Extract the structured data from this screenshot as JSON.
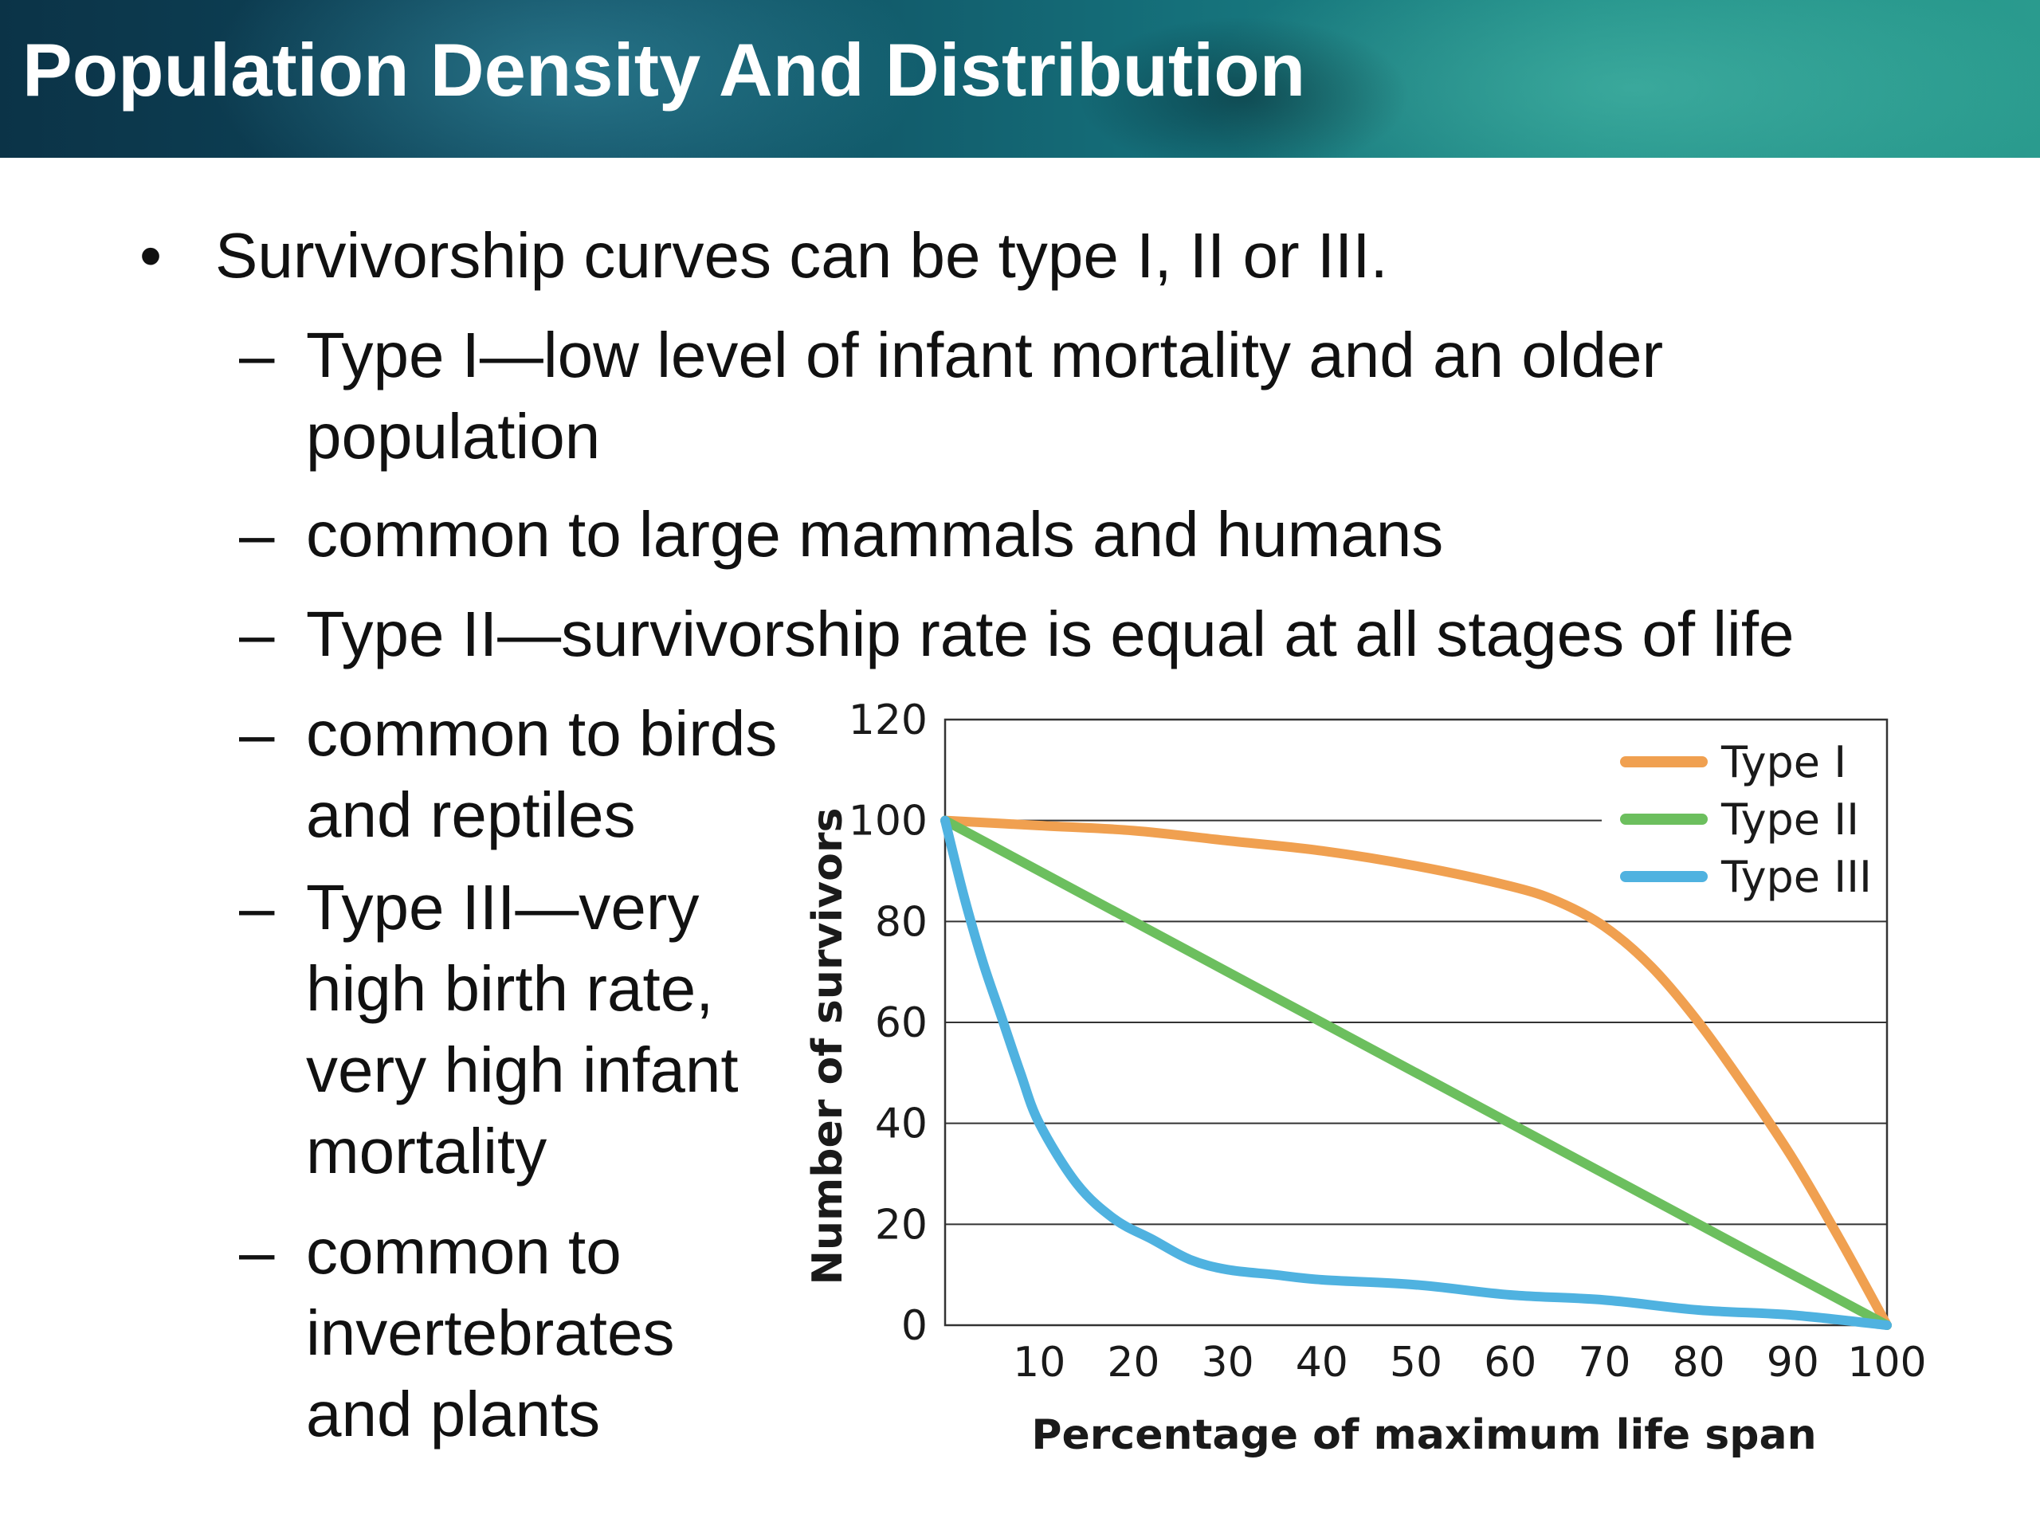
{
  "slide": {
    "title": "Population Density And Distribution",
    "main_bullet": "Survivorship curves can be type I, II or III.",
    "sub_bullets": [
      "Type I—low level of infant mortality and an older\npopulation",
      "common to large mammals and humans",
      "Type II—survivorship rate is equal at all stages of life",
      "common to birds\nand reptiles",
      "Type III—very\nhigh birth rate,\nvery high infant\nmortality",
      "common to\ninvertebrates\nand plants"
    ]
  },
  "chart_data": {
    "type": "line",
    "xlabel": "Percentage of maximum life span",
    "ylabel": "Number of survivors",
    "xlim": [
      0,
      100
    ],
    "ylim": [
      0,
      120
    ],
    "x_ticks": [
      10,
      20,
      30,
      40,
      50,
      60,
      70,
      80,
      90,
      100
    ],
    "y_ticks": [
      0,
      20,
      40,
      60,
      80,
      100,
      120
    ],
    "grid": "horizontal",
    "legend_position": "top-right",
    "series": [
      {
        "name": "Type I",
        "color": "#f0a050",
        "x": [
          0,
          10,
          20,
          30,
          40,
          50,
          60,
          65,
          70,
          75,
          80,
          85,
          90,
          95,
          100
        ],
        "y": [
          100,
          99,
          98,
          96,
          94,
          91,
          87,
          84,
          79,
          71,
          60,
          47,
          33,
          17,
          0
        ]
      },
      {
        "name": "Type II",
        "color": "#6cbf5e",
        "x": [
          0,
          100
        ],
        "y": [
          100,
          0
        ]
      },
      {
        "name": "Type III",
        "color": "#4fb2e0",
        "x": [
          0,
          2,
          4,
          6,
          8,
          10,
          14,
          18,
          22,
          26,
          30,
          35,
          40,
          50,
          60,
          70,
          80,
          90,
          100
        ],
        "y": [
          100,
          85,
          72,
          61,
          50,
          40,
          28,
          21,
          17,
          13,
          11,
          10,
          9,
          8,
          6,
          5,
          3,
          2,
          0
        ]
      }
    ]
  }
}
